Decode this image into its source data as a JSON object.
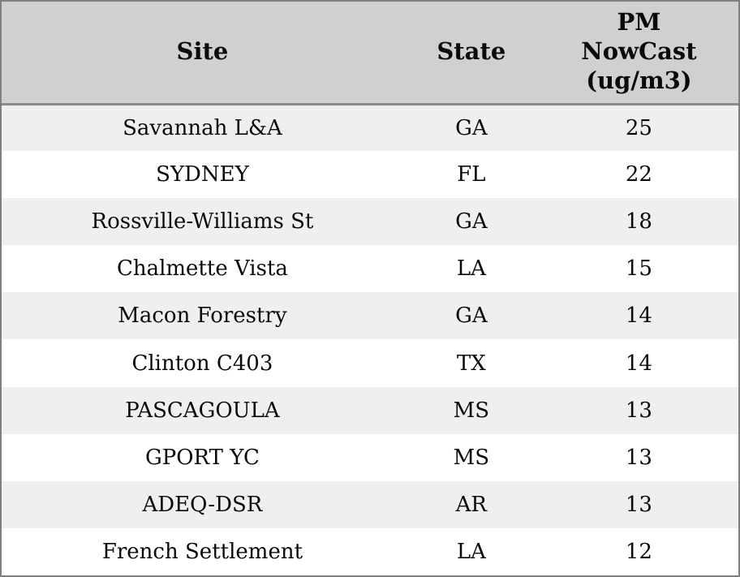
{
  "chart_data": {
    "type": "table",
    "columns": [
      {
        "key": "site",
        "label": "Site"
      },
      {
        "key": "state",
        "label": "State"
      },
      {
        "key": "pm",
        "label": "PM\nNowCast\n(ug/m3)",
        "full_label": "PM NowCast (ug/m3)"
      }
    ],
    "rows": [
      {
        "site": "Savannah L&A",
        "state": "GA",
        "pm": "25"
      },
      {
        "site": "SYDNEY",
        "state": "FL",
        "pm": "22"
      },
      {
        "site": "Rossville-Williams St",
        "state": "GA",
        "pm": "18"
      },
      {
        "site": "Chalmette Vista",
        "state": "LA",
        "pm": "15"
      },
      {
        "site": "Macon Forestry",
        "state": "GA",
        "pm": "14"
      },
      {
        "site": "Clinton C403",
        "state": "TX",
        "pm": "14"
      },
      {
        "site": "PASCAGOULA",
        "state": "MS",
        "pm": "13"
      },
      {
        "site": "GPORT YC",
        "state": "MS",
        "pm": "13"
      },
      {
        "site": "ADEQ-DSR",
        "state": "AR",
        "pm": "13"
      },
      {
        "site": "French Settlement",
        "state": "LA",
        "pm": "12"
      }
    ],
    "pm_values": [
      25,
      22,
      18,
      15,
      14,
      14,
      13,
      13,
      13,
      12
    ]
  },
  "colors": {
    "border": "#7f7f7f",
    "header_bg": "#d0d0d0",
    "header_separator": "#8c8c8c",
    "row_odd_bg": "#efefef",
    "row_even_bg": "#ffffff",
    "text": "#0a0a0a"
  }
}
